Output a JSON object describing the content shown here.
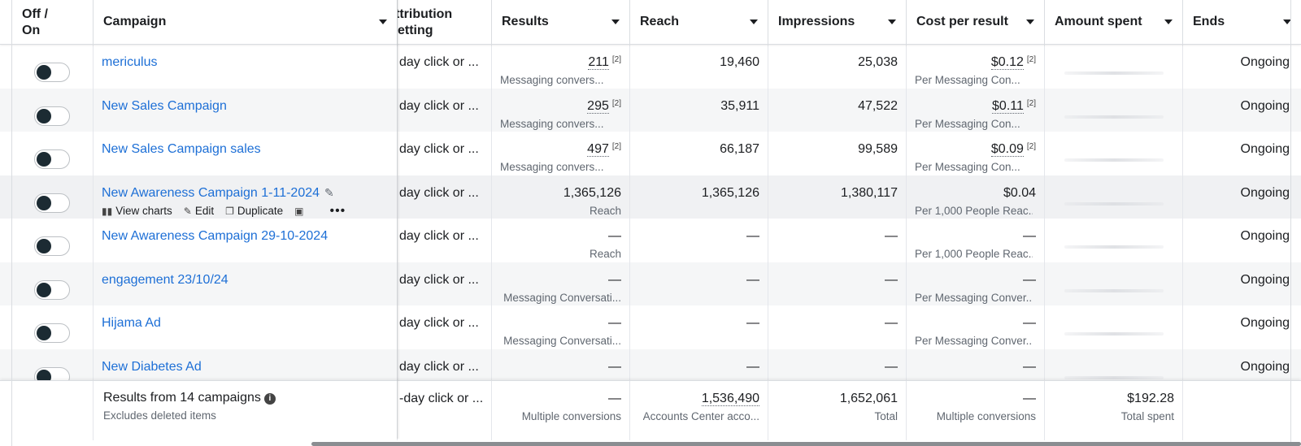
{
  "header": {
    "columns": [
      {
        "label": "Off /\nOn"
      },
      {
        "label": "Campaign"
      },
      {
        "label": "ttribution\netting"
      },
      {
        "label": "Results"
      },
      {
        "label": "Reach"
      },
      {
        "label": "Impressions"
      },
      {
        "label": "Cost per result"
      },
      {
        "label": "Amount spent"
      },
      {
        "label": "Ends"
      }
    ]
  },
  "rows": [
    {
      "name": "mericulus",
      "attribution": "day click or ...",
      "results": "211",
      "results_note": "[2]",
      "results_sub": "Messaging convers...",
      "reach": "19,460",
      "impressions": "25,038",
      "cost": "$0.12",
      "cost_note": "[2]",
      "cost_sub": "Per Messaging Con...",
      "ends": "Ongoing"
    },
    {
      "name": "New Sales Campaign",
      "attribution": "day click or ...",
      "results": "295",
      "results_note": "[2]",
      "results_sub": "Messaging convers...",
      "reach": "35,911",
      "impressions": "47,522",
      "cost": "$0.11",
      "cost_note": "[2]",
      "cost_sub": "Per Messaging Con...",
      "ends": "Ongoing"
    },
    {
      "name": "New Sales Campaign sales",
      "attribution": "day click or ...",
      "results": "497",
      "results_note": "[2]",
      "results_sub": "Messaging convers...",
      "reach": "66,187",
      "impressions": "99,589",
      "cost": "$0.09",
      "cost_note": "[2]",
      "cost_sub": "Per Messaging Con...",
      "ends": "Ongoing"
    },
    {
      "name": "New Awareness Campaign 1-11-2024",
      "attribution": "day click or ...",
      "results": "1,365,126",
      "results_note": "",
      "results_sub": "Reach",
      "reach": "1,365,126",
      "impressions": "1,380,117",
      "cost": "$0.04",
      "cost_note": "",
      "cost_sub": "Per 1,000 People Reac...",
      "ends": "Ongoing"
    },
    {
      "name": "New Awareness Campaign 29-10-2024",
      "attribution": "day click or ...",
      "results": "—",
      "results_note": "",
      "results_sub": "Reach",
      "reach": "—",
      "impressions": "—",
      "cost": "—",
      "cost_note": "",
      "cost_sub": "Per 1,000 People Reac...",
      "ends": "Ongoing"
    },
    {
      "name": "engagement 23/10/24",
      "attribution": "day click or ...",
      "results": "—",
      "results_note": "",
      "results_sub": "Messaging Conversati...",
      "reach": "—",
      "impressions": "—",
      "cost": "—",
      "cost_note": "",
      "cost_sub": "Per Messaging Conver...",
      "ends": "Ongoing"
    },
    {
      "name": "Hijama Ad",
      "attribution": "day click or ...",
      "results": "—",
      "results_note": "",
      "results_sub": "Messaging Conversati...",
      "reach": "—",
      "impressions": "—",
      "cost": "—",
      "cost_note": "",
      "cost_sub": "Per Messaging Conver...",
      "ends": "Ongoing"
    },
    {
      "name": "New Diabetes Ad",
      "attribution": "day click or ...",
      "results": "—",
      "results_note": "",
      "results_sub": "",
      "reach": "—",
      "impressions": "—",
      "cost": "—",
      "cost_note": "",
      "cost_sub": "",
      "ends": "Ongoing"
    }
  ],
  "row_actions": {
    "view_charts": "View charts",
    "edit": "Edit",
    "duplicate": "Duplicate",
    "icons": [
      "bar-chart-icon",
      "pencil-icon",
      "duplicate-icon",
      "image-icon",
      "more-icon"
    ]
  },
  "footer": {
    "title": "Results from 14 campaigns",
    "subtitle": "Excludes deleted items",
    "attribution": "-day click or ...",
    "results": "—",
    "results_sub": "Multiple conversions",
    "reach": "1,536,490",
    "reach_sub": "Accounts Center acco...",
    "impressions": "1,652,061",
    "impressions_sub": "Total",
    "cost": "—",
    "cost_sub": "Multiple conversions",
    "spent": "$192.28",
    "spent_sub": "Total spent"
  },
  "colors": {
    "link": "#1d6fd6",
    "toggle_knob": "#1c2b33",
    "alt_row": "#f5f6f7"
  }
}
